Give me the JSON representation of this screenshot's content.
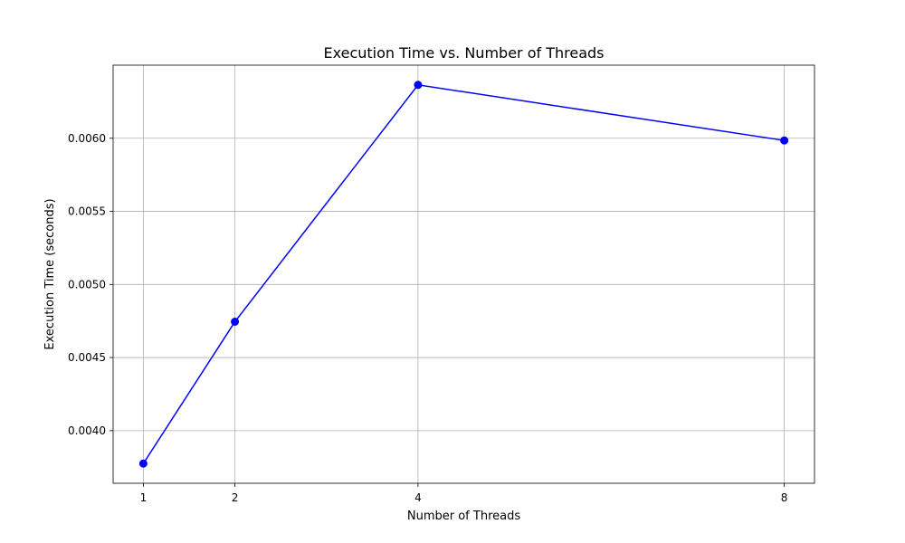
{
  "chart_data": {
    "type": "line",
    "title": "Execution Time vs. Number of Threads",
    "xlabel": "Number of Threads",
    "ylabel": "Execution Time (seconds)",
    "x": [
      1,
      2,
      4,
      8
    ],
    "xticks": [
      1,
      2,
      4,
      8
    ],
    "xtick_labels": [
      "1",
      "2",
      "4",
      "8"
    ],
    "xlim": [
      0.67,
      8.33
    ],
    "yticks": [
      0.004,
      0.0045,
      0.005,
      0.0055,
      0.006
    ],
    "ytick_labels": [
      "0.0040",
      "0.0045",
      "0.0050",
      "0.0055",
      "0.0060"
    ],
    "ylim": [
      0.00364,
      0.0065
    ],
    "grid": true,
    "series": [
      {
        "values": [
          0.003775,
          0.004745,
          0.006365,
          0.005985
        ],
        "color": "#0000ff",
        "marker": "circle"
      }
    ]
  }
}
